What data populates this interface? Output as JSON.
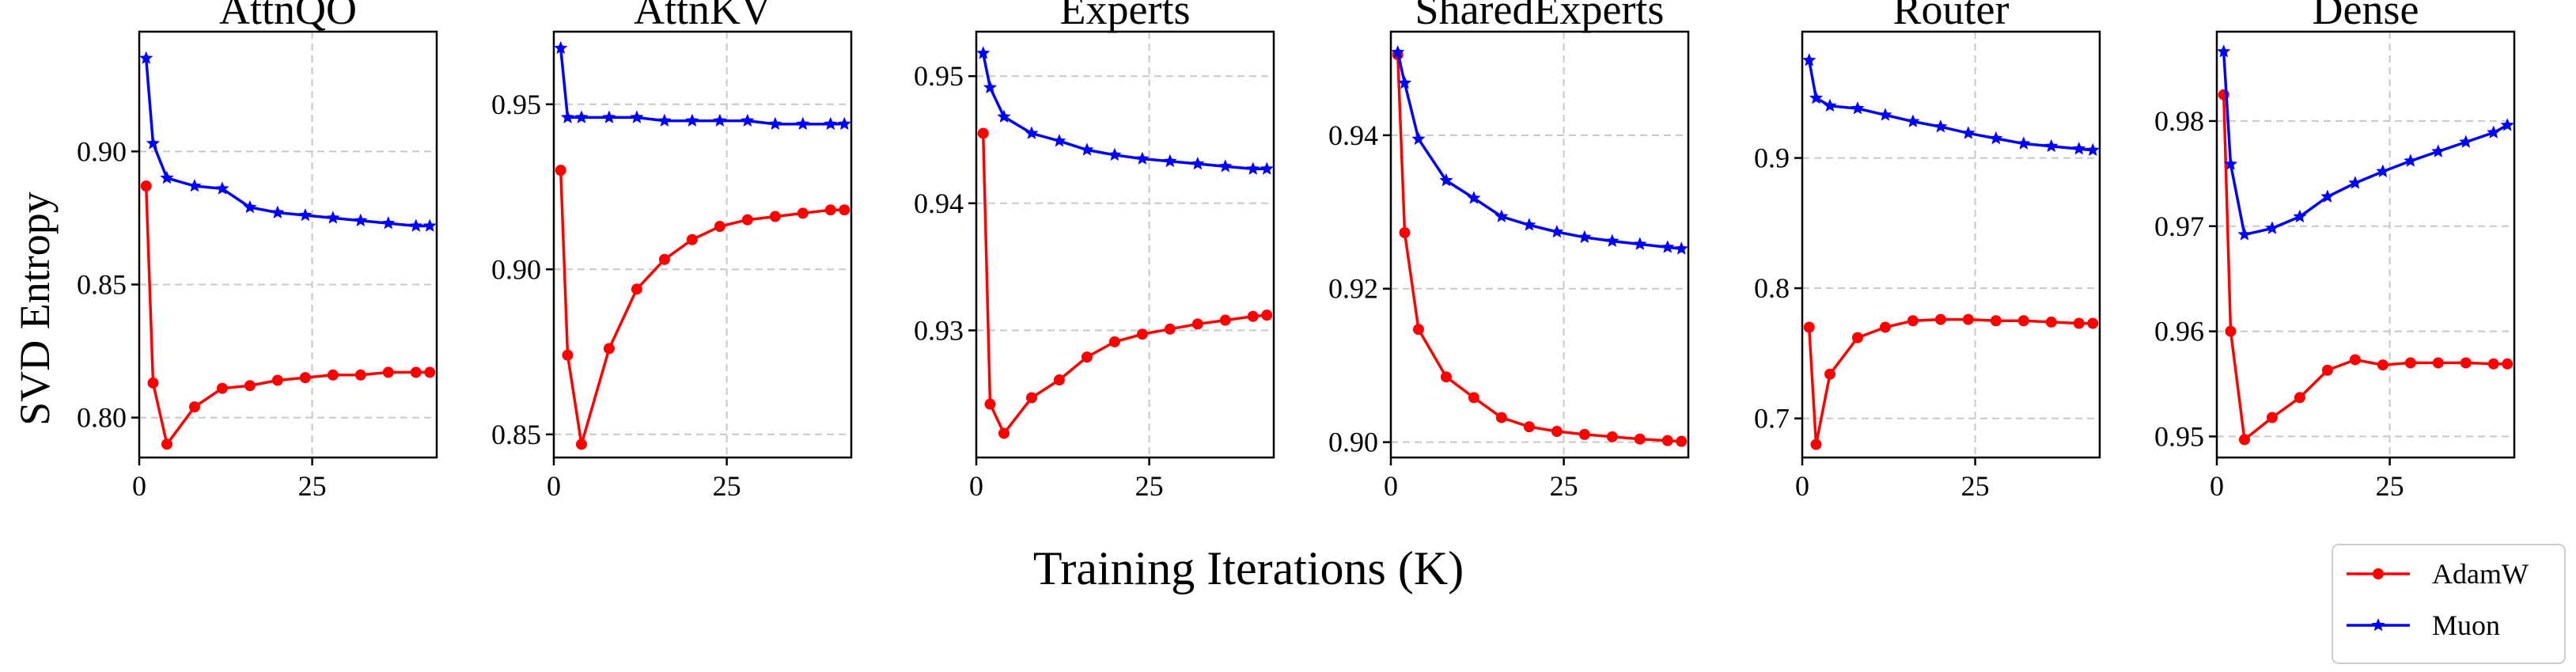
{
  "figure": {
    "ylabel": "SVD Entropy",
    "xlabel": "Training Iterations (K)",
    "legend_position": "bottom-right",
    "series": [
      {
        "name": "AdamW",
        "color": "#ff0000",
        "marker": "circle"
      },
      {
        "name": "Muon",
        "color": "#0000ff",
        "marker": "star"
      }
    ]
  },
  "chart_data": [
    {
      "type": "line",
      "title": "AttnQO",
      "xlim": [
        0,
        43
      ],
      "ylim": [
        0.785,
        0.945
      ],
      "xticks": [
        0,
        25
      ],
      "yticks": [
        0.8,
        0.85,
        0.9
      ],
      "ytick_labels": [
        "0.80",
        "0.85",
        "0.90"
      ],
      "grid": true,
      "series": [
        {
          "name": "AdamW",
          "x": [
            1,
            2,
            4,
            8,
            12,
            16,
            20,
            24,
            28,
            32,
            36,
            40,
            42
          ],
          "values": [
            0.887,
            0.813,
            0.79,
            0.804,
            0.811,
            0.812,
            0.814,
            0.815,
            0.816,
            0.816,
            0.817,
            0.817,
            0.817
          ]
        },
        {
          "name": "Muon",
          "x": [
            1,
            2,
            4,
            8,
            12,
            16,
            20,
            24,
            28,
            32,
            36,
            40,
            42
          ],
          "values": [
            0.935,
            0.903,
            0.89,
            0.887,
            0.886,
            0.879,
            0.877,
            0.876,
            0.875,
            0.874,
            0.873,
            0.872,
            0.872
          ]
        }
      ]
    },
    {
      "type": "line",
      "title": "AttnKV",
      "xlim": [
        0,
        43
      ],
      "ylim": [
        0.843,
        0.972
      ],
      "xticks": [
        0,
        25
      ],
      "yticks": [
        0.85,
        0.9,
        0.95
      ],
      "ytick_labels": [
        "0.85",
        "0.90",
        "0.95"
      ],
      "grid": true,
      "series": [
        {
          "name": "AdamW",
          "x": [
            1,
            2,
            4,
            8,
            12,
            16,
            20,
            24,
            28,
            32,
            36,
            40,
            42
          ],
          "values": [
            0.93,
            0.874,
            0.847,
            0.876,
            0.894,
            0.903,
            0.909,
            0.913,
            0.915,
            0.916,
            0.917,
            0.918,
            0.918
          ]
        },
        {
          "name": "Muon",
          "x": [
            1,
            2,
            4,
            8,
            12,
            16,
            20,
            24,
            28,
            32,
            36,
            40,
            42
          ],
          "values": [
            0.967,
            0.946,
            0.946,
            0.946,
            0.946,
            0.945,
            0.945,
            0.945,
            0.945,
            0.944,
            0.944,
            0.944,
            0.944
          ]
        }
      ]
    },
    {
      "type": "line",
      "title": "Experts",
      "xlim": [
        0,
        43
      ],
      "ylim": [
        0.92,
        0.9535
      ],
      "xticks": [
        0,
        25
      ],
      "yticks": [
        0.93,
        0.94,
        0.95
      ],
      "ytick_labels": [
        "0.93",
        "0.94",
        "0.95"
      ],
      "grid": true,
      "series": [
        {
          "name": "AdamW",
          "x": [
            1,
            2,
            4,
            8,
            12,
            16,
            20,
            24,
            28,
            32,
            36,
            40,
            42
          ],
          "values": [
            0.9455,
            0.9242,
            0.9219,
            0.9247,
            0.9261,
            0.9279,
            0.9291,
            0.9297,
            0.9301,
            0.9305,
            0.9308,
            0.9311,
            0.9312
          ]
        },
        {
          "name": "Muon",
          "x": [
            1,
            2,
            4,
            8,
            12,
            16,
            20,
            24,
            28,
            32,
            36,
            40,
            42
          ],
          "values": [
            0.9518,
            0.9491,
            0.9468,
            0.9455,
            0.9449,
            0.9442,
            0.9438,
            0.9435,
            0.9433,
            0.9431,
            0.9429,
            0.9427,
            0.9427
          ]
        }
      ]
    },
    {
      "type": "line",
      "title": "SharedExperts",
      "xlim": [
        0,
        43
      ],
      "ylim": [
        0.898,
        0.9535
      ],
      "xticks": [
        0,
        25
      ],
      "yticks": [
        0.9,
        0.92,
        0.94
      ],
      "ytick_labels": [
        "0.90",
        "0.92",
        "0.94"
      ],
      "grid": true,
      "series": [
        {
          "name": "AdamW",
          "x": [
            1,
            2,
            4,
            8,
            12,
            16,
            20,
            24,
            28,
            32,
            36,
            40,
            42
          ],
          "values": [
            0.9505,
            0.9273,
            0.9147,
            0.9085,
            0.9058,
            0.9032,
            0.902,
            0.9014,
            0.901,
            0.9007,
            0.9004,
            0.9002,
            0.9001
          ]
        },
        {
          "name": "Muon",
          "x": [
            1,
            2,
            4,
            8,
            12,
            16,
            20,
            24,
            28,
            32,
            36,
            40,
            42
          ],
          "values": [
            0.9508,
            0.9468,
            0.9395,
            0.9341,
            0.9318,
            0.9294,
            0.9283,
            0.9274,
            0.9267,
            0.9262,
            0.9258,
            0.9254,
            0.9252
          ]
        }
      ]
    },
    {
      "type": "line",
      "title": "Router",
      "xlim": [
        0,
        43
      ],
      "ylim": [
        0.67,
        0.997
      ],
      "xticks": [
        0,
        25
      ],
      "yticks": [
        0.7,
        0.8,
        0.9
      ],
      "ytick_labels": [
        "0.7",
        "0.8",
        "0.9"
      ],
      "grid": true,
      "series": [
        {
          "name": "AdamW",
          "x": [
            1,
            2,
            4,
            8,
            12,
            16,
            20,
            24,
            28,
            32,
            36,
            40,
            42
          ],
          "values": [
            0.77,
            0.68,
            0.734,
            0.762,
            0.77,
            0.775,
            0.776,
            0.776,
            0.775,
            0.775,
            0.774,
            0.773,
            0.773
          ]
        },
        {
          "name": "Muon",
          "x": [
            1,
            2,
            4,
            8,
            12,
            16,
            20,
            24,
            28,
            32,
            36,
            40,
            42
          ],
          "values": [
            0.975,
            0.946,
            0.94,
            0.938,
            0.933,
            0.928,
            0.924,
            0.919,
            0.915,
            0.911,
            0.909,
            0.907,
            0.906
          ]
        }
      ]
    },
    {
      "type": "line",
      "title": "Dense",
      "xlim": [
        0,
        43
      ],
      "ylim": [
        0.948,
        0.9885
      ],
      "xticks": [
        0,
        25
      ],
      "yticks": [
        0.95,
        0.96,
        0.97,
        0.98
      ],
      "ytick_labels": [
        "0.95",
        "0.96",
        "0.97",
        "0.98"
      ],
      "grid": true,
      "series": [
        {
          "name": "AdamW",
          "x": [
            1,
            2,
            4,
            8,
            12,
            16,
            20,
            24,
            28,
            32,
            36,
            40,
            42
          ],
          "values": [
            0.9825,
            0.96,
            0.9497,
            0.9518,
            0.9537,
            0.9563,
            0.9573,
            0.9568,
            0.957,
            0.957,
            0.957,
            0.9569,
            0.9569
          ]
        },
        {
          "name": "Muon",
          "x": [
            1,
            2,
            4,
            8,
            12,
            16,
            20,
            24,
            28,
            32,
            36,
            40,
            42
          ],
          "values": [
            0.9866,
            0.9759,
            0.9692,
            0.9698,
            0.9709,
            0.9728,
            0.9741,
            0.9752,
            0.9762,
            0.9771,
            0.978,
            0.9789,
            0.9796
          ]
        }
      ]
    }
  ]
}
